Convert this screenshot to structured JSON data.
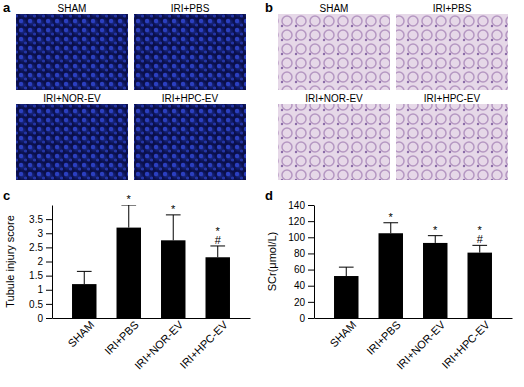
{
  "figure": {
    "image_panels": [
      {
        "panel": "a",
        "tiles": [
          "SHAM",
          "IRI+PBS",
          "IRI+NOR-EV",
          "IRI+HPC-EV"
        ]
      },
      {
        "panel": "b",
        "tiles": [
          "SHAM",
          "IRI+PBS",
          "IRI+NOR-EV",
          "IRI+HPC-EV"
        ]
      }
    ]
  },
  "chart_data": [
    {
      "type": "bar",
      "panel": "c",
      "y_label": "Tubule injury score",
      "categories": [
        "SHAM",
        "IRI+PBS",
        "IRI+NOR-EV",
        "IRI+HPC-EV"
      ],
      "values": [
        1.2,
        3.2,
        2.75,
        2.15
      ],
      "errors": [
        0.45,
        0.8,
        0.9,
        0.4
      ],
      "annotations": [
        [],
        [
          "*"
        ],
        [
          "*"
        ],
        [
          "*",
          "#"
        ]
      ],
      "color": "#000000",
      "ylim": [
        0,
        4
      ],
      "yticks": [
        0,
        0.5,
        1,
        1.5,
        2,
        2.5,
        3,
        3.5
      ],
      "grid": false
    },
    {
      "type": "bar",
      "panel": "d",
      "y_label": "SCr(μmol/L)",
      "categories": [
        "SHAM",
        "IRI+PBS",
        "IRI+NOR-EV",
        "IRI+HPC-EV"
      ],
      "values": [
        52,
        105,
        93,
        81
      ],
      "errors": [
        11,
        13,
        9,
        9
      ],
      "annotations": [
        [],
        [
          "*"
        ],
        [
          "*"
        ],
        [
          "*",
          "#"
        ]
      ],
      "color": "#000000",
      "ylim": [
        0,
        140
      ],
      "yticks": [
        0,
        20,
        40,
        60,
        80,
        100,
        120,
        140
      ],
      "grid": false
    }
  ]
}
